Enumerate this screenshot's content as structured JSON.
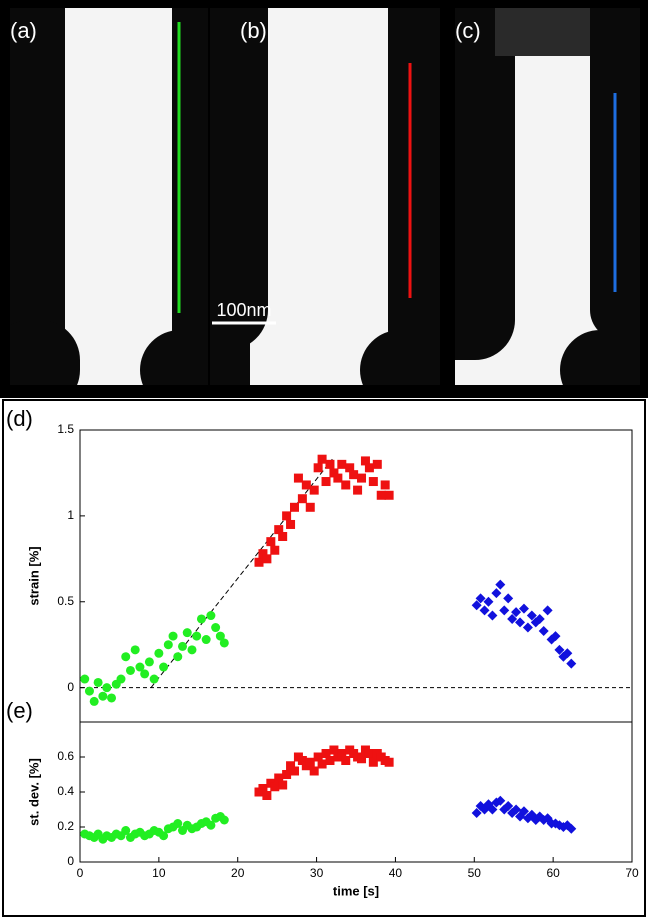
{
  "micrographs": {
    "labels": [
      "(a)",
      "(b)",
      "(c)"
    ],
    "scale_bar": "100nm"
  },
  "chart_data": [
    {
      "type": "scatter",
      "label": "(d)",
      "y_label": "strain [%]",
      "xlim": [
        0,
        70
      ],
      "ylim": [
        -0.2,
        1.5
      ],
      "yticks": [
        0,
        0.5,
        1,
        1.5
      ],
      "zero_line": 0,
      "trend_line": {
        "x": [
          9,
          32
        ],
        "y": [
          0,
          1.33
        ]
      },
      "series": [
        {
          "marker": "circle",
          "color": "#22ee22",
          "x": [
            0.6,
            1.2,
            1.8,
            2.3,
            2.9,
            3.4,
            4.0,
            4.6,
            5.2,
            5.8,
            6.4,
            7.0,
            7.6,
            8.2,
            8.8,
            9.4,
            10.0,
            10.6,
            11.2,
            11.8,
            12.4,
            13.0,
            13.6,
            14.2,
            14.8,
            15.4,
            16.0,
            16.6,
            17.2,
            17.8,
            18.3
          ],
          "values": [
            0.05,
            -0.02,
            -0.08,
            0.03,
            -0.05,
            0.0,
            -0.06,
            0.02,
            0.05,
            0.18,
            0.1,
            0.22,
            0.12,
            0.08,
            0.15,
            0.05,
            0.2,
            0.12,
            0.25,
            0.3,
            0.18,
            0.24,
            0.32,
            0.22,
            0.3,
            0.4,
            0.28,
            0.42,
            0.35,
            0.3,
            0.26
          ]
        },
        {
          "marker": "square",
          "color": "#ee1111",
          "x": [
            22.7,
            23.2,
            23.7,
            24.2,
            24.7,
            25.2,
            25.7,
            26.2,
            26.7,
            27.2,
            27.7,
            28.2,
            28.7,
            29.2,
            29.7,
            30.2,
            30.7,
            31.2,
            31.7,
            32.2,
            32.7,
            33.2,
            33.7,
            34.2,
            34.7,
            35.2,
            35.7,
            36.2,
            36.7,
            37.2,
            37.7,
            38.2,
            38.7,
            39.2
          ],
          "values": [
            0.73,
            0.78,
            0.75,
            0.85,
            0.8,
            0.92,
            0.88,
            1.0,
            0.95,
            1.05,
            1.22,
            1.1,
            1.18,
            1.05,
            1.15,
            1.28,
            1.33,
            1.2,
            1.3,
            1.25,
            1.22,
            1.3,
            1.18,
            1.28,
            1.24,
            1.15,
            1.22,
            1.32,
            1.28,
            1.2,
            1.3,
            1.12,
            1.18,
            1.12
          ]
        },
        {
          "marker": "diamond",
          "color": "#1111dd",
          "x": [
            50.3,
            50.8,
            51.3,
            51.8,
            52.3,
            52.8,
            53.3,
            53.8,
            54.3,
            54.8,
            55.3,
            55.8,
            56.3,
            56.8,
            57.3,
            57.8,
            58.3,
            58.8,
            59.3,
            59.8,
            60.3,
            60.8,
            61.3,
            61.8,
            62.3
          ],
          "values": [
            0.48,
            0.52,
            0.45,
            0.5,
            0.42,
            0.55,
            0.6,
            0.45,
            0.52,
            0.4,
            0.44,
            0.38,
            0.46,
            0.35,
            0.42,
            0.38,
            0.4,
            0.33,
            0.45,
            0.28,
            0.3,
            0.22,
            0.18,
            0.2,
            0.14
          ]
        }
      ]
    },
    {
      "type": "scatter",
      "label": "(e)",
      "y_label": "st. dev. [%]",
      "x_label": "time [s]",
      "xlim": [
        0,
        70
      ],
      "xticks": [
        0,
        10,
        20,
        30,
        40,
        50,
        60,
        70
      ],
      "ylim": [
        0,
        0.8
      ],
      "yticks": [
        0,
        0.2,
        0.4,
        0.6
      ],
      "series": [
        {
          "marker": "circle",
          "color": "#22ee22",
          "x": [
            0.6,
            1.2,
            1.8,
            2.3,
            2.9,
            3.4,
            4.0,
            4.6,
            5.2,
            5.8,
            6.4,
            7.0,
            7.6,
            8.2,
            8.8,
            9.4,
            10.0,
            10.6,
            11.2,
            11.8,
            12.4,
            13.0,
            13.6,
            14.2,
            14.8,
            15.4,
            16.0,
            16.6,
            17.2,
            17.8,
            18.3
          ],
          "values": [
            0.16,
            0.15,
            0.14,
            0.16,
            0.13,
            0.15,
            0.14,
            0.16,
            0.15,
            0.18,
            0.14,
            0.16,
            0.17,
            0.15,
            0.16,
            0.18,
            0.17,
            0.15,
            0.19,
            0.2,
            0.22,
            0.18,
            0.21,
            0.19,
            0.2,
            0.22,
            0.23,
            0.21,
            0.25,
            0.26,
            0.24
          ]
        },
        {
          "marker": "square",
          "color": "#ee1111",
          "x": [
            22.7,
            23.2,
            23.7,
            24.2,
            24.7,
            25.2,
            25.7,
            26.2,
            26.7,
            27.2,
            27.7,
            28.2,
            28.7,
            29.2,
            29.7,
            30.2,
            30.7,
            31.2,
            31.7,
            32.2,
            32.7,
            33.2,
            33.7,
            34.2,
            34.7,
            35.2,
            35.7,
            36.2,
            36.7,
            37.2,
            37.7,
            38.2,
            38.7,
            39.2
          ],
          "values": [
            0.4,
            0.42,
            0.38,
            0.45,
            0.43,
            0.48,
            0.44,
            0.5,
            0.55,
            0.52,
            0.6,
            0.58,
            0.55,
            0.57,
            0.52,
            0.6,
            0.56,
            0.62,
            0.58,
            0.64,
            0.6,
            0.62,
            0.58,
            0.64,
            0.62,
            0.6,
            0.59,
            0.64,
            0.62,
            0.57,
            0.62,
            0.6,
            0.58,
            0.57
          ]
        },
        {
          "marker": "diamond",
          "color": "#1111dd",
          "x": [
            50.3,
            50.8,
            51.3,
            51.8,
            52.3,
            52.8,
            53.3,
            53.8,
            54.3,
            54.8,
            55.3,
            55.8,
            56.3,
            56.8,
            57.3,
            57.8,
            58.3,
            58.8,
            59.3,
            59.8,
            60.3,
            60.8,
            61.3,
            61.8,
            62.3
          ],
          "values": [
            0.28,
            0.32,
            0.3,
            0.33,
            0.3,
            0.34,
            0.35,
            0.3,
            0.32,
            0.28,
            0.3,
            0.26,
            0.29,
            0.25,
            0.27,
            0.24,
            0.26,
            0.24,
            0.25,
            0.22,
            0.22,
            0.21,
            0.2,
            0.21,
            0.19
          ]
        }
      ]
    }
  ]
}
